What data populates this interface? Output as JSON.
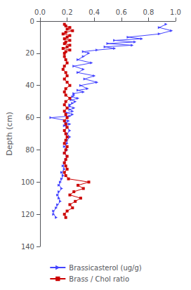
{
  "chart_data": {
    "type": "line",
    "ylabel": "Depth (cm)",
    "xlim": [
      0,
      1
    ],
    "ylim": [
      140,
      0
    ],
    "xticks": [
      {
        "value": 0,
        "label": "0.0"
      },
      0.2,
      0.4,
      0.6,
      0.8,
      {
        "value": 1,
        "label": "1.0"
      }
    ],
    "yticks": [
      0,
      20,
      40,
      60,
      80,
      100,
      120,
      140
    ],
    "grid": false,
    "legend": "bottom",
    "series": [
      {
        "name": "Brassicasterol (ug/g)",
        "color": "#4444ff",
        "marker": "triangle-right",
        "y": [
          2,
          4,
          6,
          8,
          10,
          11,
          12,
          13,
          14,
          15,
          16,
          17,
          18,
          19,
          20,
          22,
          24,
          26,
          28,
          30,
          32,
          34,
          36,
          38,
          40,
          42,
          43,
          44,
          45,
          46,
          47,
          48,
          49,
          50,
          51,
          52,
          53,
          54,
          55,
          56,
          57,
          58,
          59,
          60,
          62,
          63,
          64,
          65,
          66,
          68,
          70,
          72,
          74,
          76,
          78,
          80,
          82,
          84,
          86,
          88,
          90,
          92,
          94,
          96,
          98,
          100,
          102,
          104,
          106,
          108,
          110,
          112,
          114,
          116,
          118,
          120,
          122
        ],
        "x": [
          0.93,
          0.88,
          0.97,
          0.88,
          0.65,
          0.75,
          0.55,
          0.7,
          0.5,
          0.68,
          0.48,
          0.55,
          0.42,
          0.32,
          0.36,
          0.32,
          0.28,
          0.38,
          0.25,
          0.32,
          0.28,
          0.4,
          0.33,
          0.42,
          0.3,
          0.35,
          0.28,
          0.32,
          0.25,
          0.25,
          0.24,
          0.28,
          0.23,
          0.26,
          0.24,
          0.22,
          0.22,
          0.25,
          0.22,
          0.24,
          0.2,
          0.24,
          0.22,
          0.08,
          0.21,
          0.19,
          0.22,
          0.18,
          0.2,
          0.22,
          0.2,
          0.22,
          0.2,
          0.2,
          0.18,
          0.2,
          0.18,
          0.2,
          0.19,
          0.18,
          0.17,
          0.18,
          0.16,
          0.17,
          0.16,
          0.15,
          0.14,
          0.16,
          0.14,
          0.13,
          0.14,
          0.15,
          0.13,
          0.12,
          0.1,
          0.1,
          0.12
        ]
      },
      {
        "name": "Brass / Chol ratio",
        "color": "#cc0000",
        "marker": "square",
        "y": [
          2,
          3,
          4,
          5,
          6,
          7,
          8,
          9,
          10,
          11,
          12,
          13,
          14,
          15,
          16,
          17,
          18,
          19,
          20,
          22,
          24,
          26,
          28,
          30,
          32,
          34,
          36,
          38,
          40,
          42,
          44,
          46,
          48,
          50,
          52,
          54,
          56,
          58,
          60,
          62,
          64,
          66,
          68,
          70,
          72,
          74,
          76,
          78,
          80,
          82,
          84,
          86,
          88,
          90,
          92,
          94,
          96,
          98,
          100,
          102,
          104,
          106,
          108,
          110,
          112,
          114,
          116,
          118,
          120,
          122
        ],
        "x": [
          0.18,
          0.19,
          0.22,
          0.2,
          0.24,
          0.19,
          0.17,
          0.22,
          0.2,
          0.18,
          0.22,
          0.19,
          0.18,
          0.22,
          0.2,
          0.17,
          0.22,
          0.19,
          0.18,
          0.18,
          0.19,
          0.2,
          0.18,
          0.17,
          0.19,
          0.2,
          0.18,
          0.2,
          0.22,
          0.19,
          0.18,
          0.19,
          0.22,
          0.19,
          0.18,
          0.2,
          0.18,
          0.19,
          0.2,
          0.18,
          0.19,
          0.2,
          0.18,
          0.19,
          0.2,
          0.19,
          0.18,
          0.2,
          0.19,
          0.18,
          0.2,
          0.19,
          0.18,
          0.19,
          0.2,
          0.18,
          0.19,
          0.21,
          0.36,
          0.28,
          0.32,
          0.25,
          0.22,
          0.3,
          0.26,
          0.22,
          0.24,
          0.2,
          0.18,
          0.19
        ]
      }
    ]
  }
}
